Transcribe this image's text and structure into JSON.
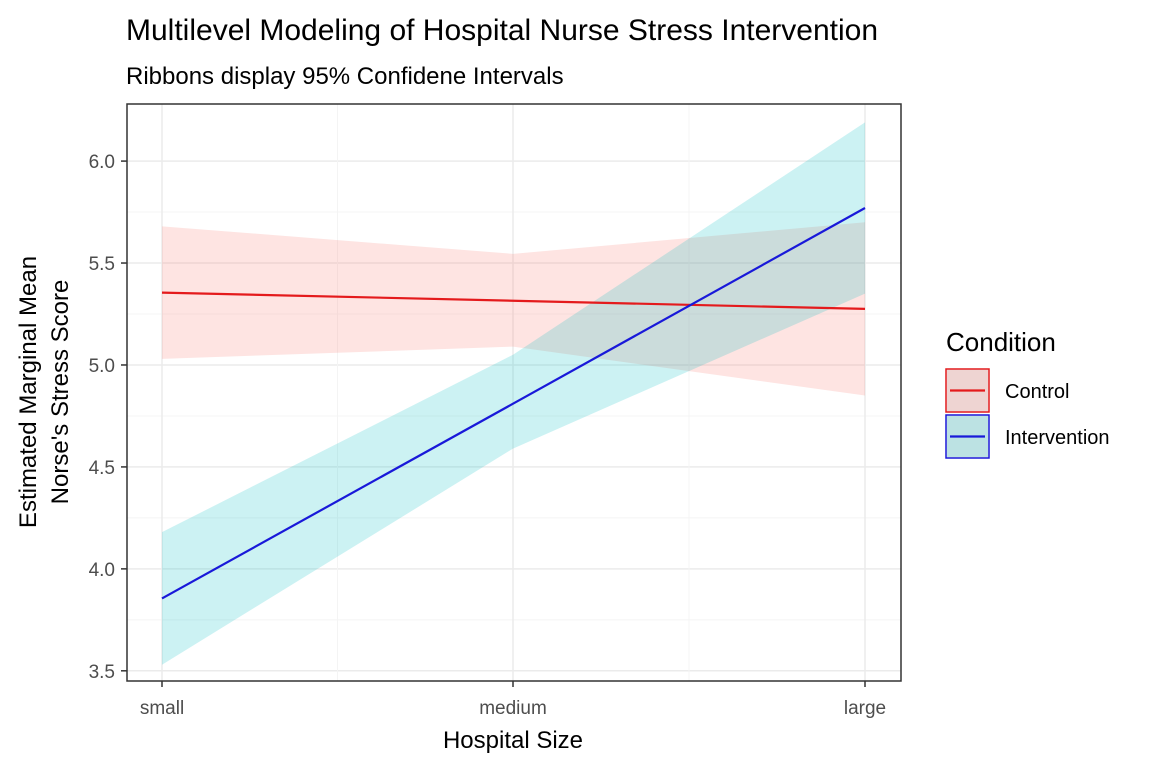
{
  "chart_data": {
    "type": "line",
    "title": "Multilevel Modeling of Hospital Nurse Stress Intervention",
    "subtitle": "Ribbons display 95% Confidene Intervals",
    "xlabel": "Hospital Size",
    "ylabel_lines": [
      "Estimated Marginal Mean",
      "Norse's Stress Score"
    ],
    "categories": [
      "small",
      "medium",
      "large"
    ],
    "y_ticks": [
      "3.5",
      "4.0",
      "4.5",
      "5.0",
      "5.5",
      "6.0"
    ],
    "ylim": [
      3.45,
      6.28
    ],
    "grid": true,
    "legend": {
      "title": "Condition",
      "placement": "right"
    },
    "series": [
      {
        "name": "Control",
        "color": "#e41a1c",
        "ribbon_color": "#f8766d",
        "values": [
          5.355,
          5.315,
          5.275
        ],
        "lower": [
          5.03,
          5.09,
          4.85
        ],
        "upper": [
          5.68,
          5.545,
          5.7
        ]
      },
      {
        "name": "Intervention",
        "color": "#1919d9",
        "ribbon_color": "#00bfc4",
        "values": [
          3.855,
          4.81,
          5.77
        ],
        "lower": [
          3.53,
          4.59,
          5.35
        ],
        "upper": [
          4.18,
          5.05,
          6.19
        ]
      }
    ]
  }
}
